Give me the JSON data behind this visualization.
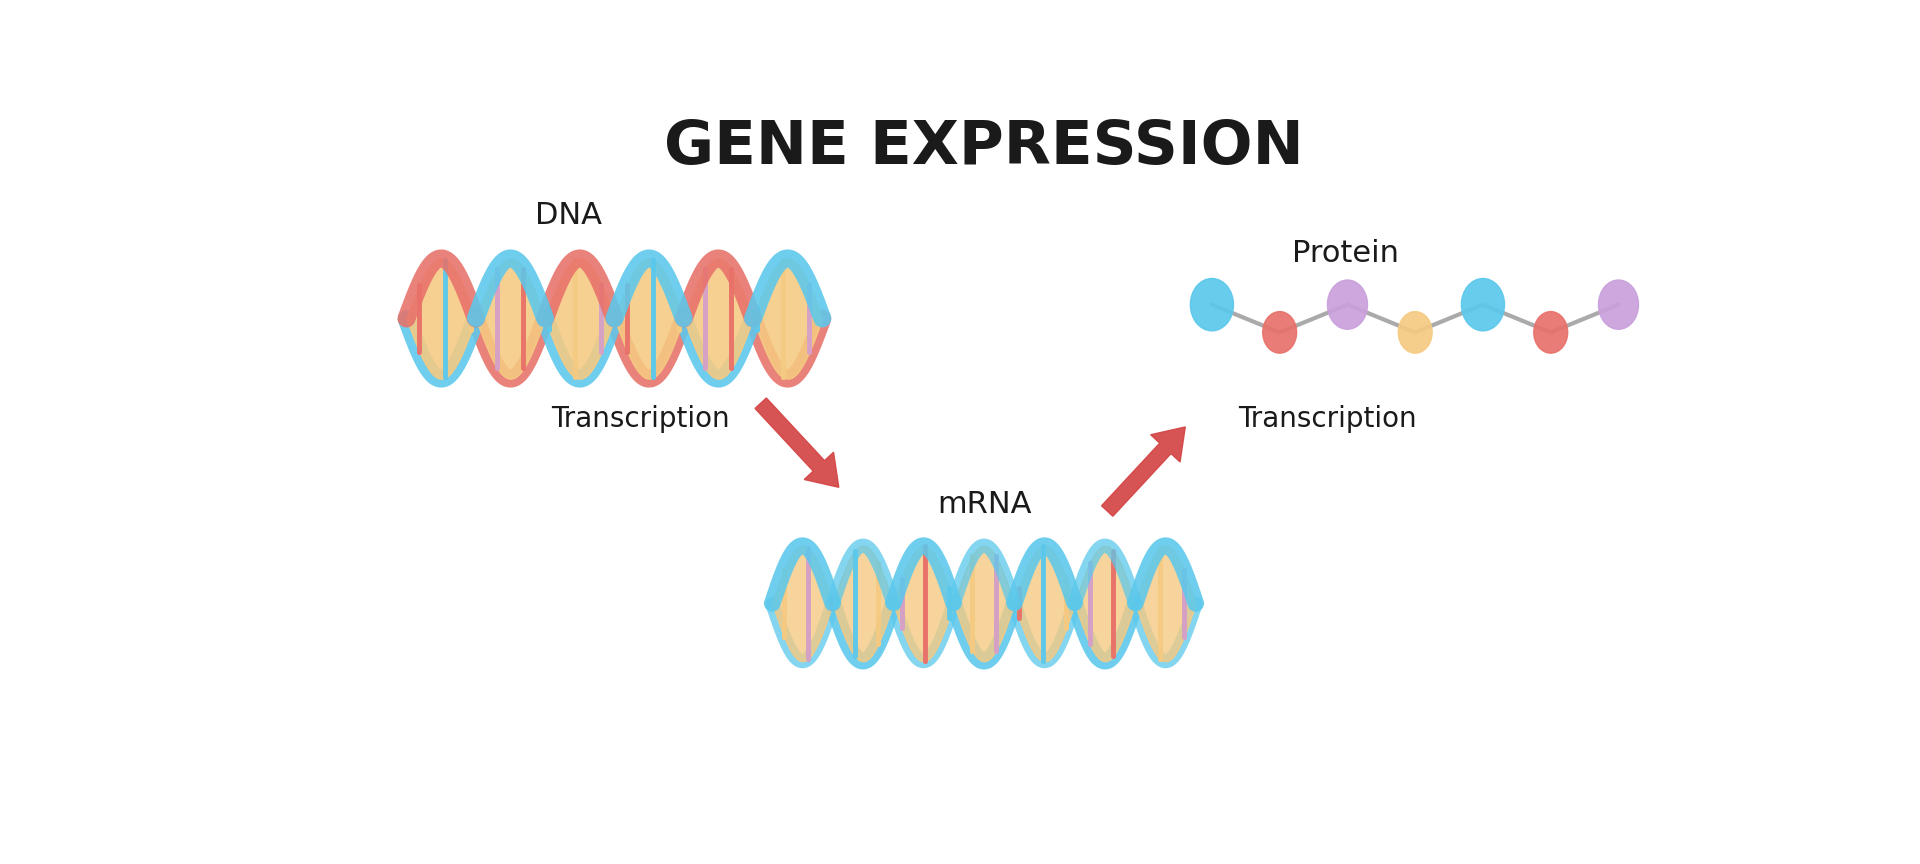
{
  "title": "GENE EXPRESSION",
  "title_fontsize": 44,
  "title_fontweight": "bold",
  "bg_color": "#ffffff",
  "dna_label": "DNA",
  "mrna_label": "mRNA",
  "protein_label": "Protein",
  "transcription_label": "Transcription",
  "label_fontsize": 22,
  "transcription_fontsize": 20,
  "dna_strand1_color": "#E8716A",
  "dna_strand2_color": "#5BC8EC",
  "dna_fill_color": "#F5CA82",
  "dna_rung_colors": [
    "#E8716A",
    "#5BC8EC",
    "#F5CA82",
    "#D4A0C8",
    "#E8716A",
    "#5BC8EC",
    "#F5CA82",
    "#D4A0C8"
  ],
  "mrna_strand_color": "#5BC8EC",
  "mrna_fill_color": "#F5CA82",
  "mrna_rung_colors": [
    "#F5CA82",
    "#D4A0C8",
    "#E8716A",
    "#5BC8EC",
    "#F5CA82",
    "#D4A0C8",
    "#E8716A",
    "#5BC8EC"
  ],
  "protein_colors": [
    "#5BC8EC",
    "#E8716A",
    "#C9A0DC",
    "#F5CA82",
    "#5BC8EC",
    "#E8716A",
    "#C9A0DC"
  ],
  "protein_line_color": "#AAAAAA",
  "arrow_color": "#D44545",
  "text_color": "#1a1a1a"
}
